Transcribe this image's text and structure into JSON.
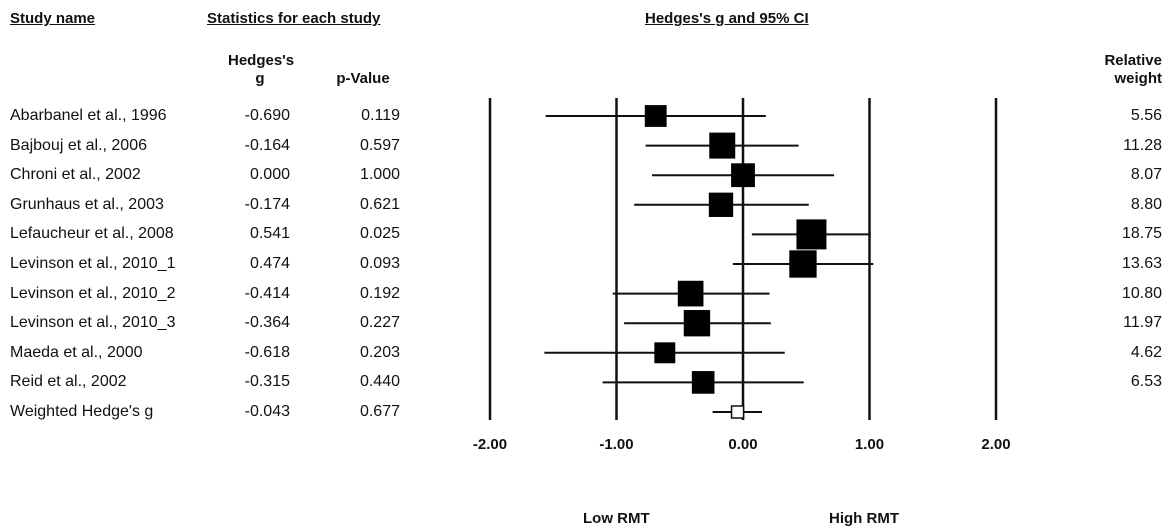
{
  "headers": {
    "study_name": "Study name",
    "statistics": "Statistics for each study",
    "plot_title": "Hedges's g and 95%  CI",
    "col_g_line1": "Hedges's",
    "col_g_line2": "g",
    "col_p": "p-Value",
    "col_weight_line1": "Relative",
    "col_weight_line2": "weight"
  },
  "labels": {
    "low": "Low RMT",
    "high": "High RMT"
  },
  "chart_data": {
    "type": "forest",
    "xlim": [
      -2,
      2
    ],
    "x_ticks": [
      "-2.00",
      "-1.00",
      "0.00",
      "1.00",
      "2.00"
    ],
    "x_tick_values": [
      -2,
      -1,
      0,
      1,
      2
    ],
    "studies": [
      {
        "name": "Abarbanel et al., 1996",
        "g": "-0.690",
        "p": "0.119",
        "weight": "5.56",
        "g_val": -0.69,
        "lower": -1.56,
        "upper": 0.18,
        "w_val": 5.56
      },
      {
        "name": "Bajbouj et al., 2006",
        "g": "-0.164",
        "p": "0.597",
        "weight": "11.28",
        "g_val": -0.164,
        "lower": -0.77,
        "upper": 0.44,
        "w_val": 11.28
      },
      {
        "name": "Chroni et al., 2002",
        "g": "0.000",
        "p": "1.000",
        "weight": "8.07",
        "g_val": 0.0,
        "lower": -0.72,
        "upper": 0.72,
        "w_val": 8.07
      },
      {
        "name": "Grunhaus et al., 2003",
        "g": "-0.174",
        "p": "0.621",
        "weight": "8.80",
        "g_val": -0.174,
        "lower": -0.86,
        "upper": 0.52,
        "w_val": 8.8
      },
      {
        "name": "Lefaucheur et al., 2008",
        "g": "0.541",
        "p": "0.025",
        "weight": "18.75",
        "g_val": 0.541,
        "lower": 0.07,
        "upper": 1.01,
        "w_val": 18.75
      },
      {
        "name": "Levinson et al., 2010_1",
        "g": "0.474",
        "p": "0.093",
        "weight": "13.63",
        "g_val": 0.474,
        "lower": -0.08,
        "upper": 1.03,
        "w_val": 13.63
      },
      {
        "name": "Levinson et al., 2010_2",
        "g": "-0.414",
        "p": "0.192",
        "weight": "10.80",
        "g_val": -0.414,
        "lower": -1.03,
        "upper": 0.21,
        "w_val": 10.8
      },
      {
        "name": "Levinson et al., 2010_3",
        "g": "-0.364",
        "p": "0.227",
        "weight": "11.97",
        "g_val": -0.364,
        "lower": -0.94,
        "upper": 0.22,
        "w_val": 11.97
      },
      {
        "name": "Maeda et al., 2000",
        "g": "-0.618",
        "p": "0.203",
        "weight": "4.62",
        "g_val": -0.618,
        "lower": -1.57,
        "upper": 0.33,
        "w_val": 4.62
      },
      {
        "name": "Reid et al., 2002",
        "g": "-0.315",
        "p": "0.440",
        "weight": "6.53",
        "g_val": -0.315,
        "lower": -1.11,
        "upper": 0.48,
        "w_val": 6.53
      }
    ],
    "summary": {
      "name": "Weighted Hedge's g",
      "g": "-0.043",
      "p": "0.677",
      "g_val": -0.043,
      "lower": -0.24,
      "upper": 0.15
    }
  }
}
